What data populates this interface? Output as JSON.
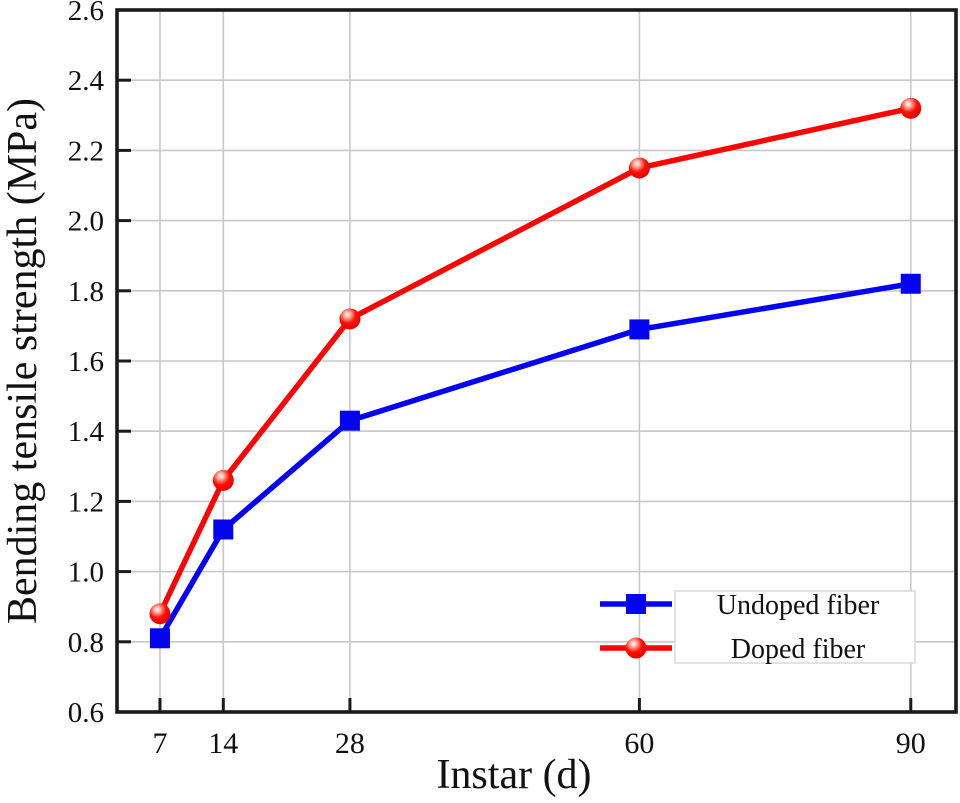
{
  "chart_data": {
    "type": "line",
    "title": "",
    "xlabel": "Instar (d)",
    "ylabel": "Bending tensile strength (MPa)",
    "x": [
      7,
      14,
      28,
      60,
      90
    ],
    "x_tick_labels": [
      "7",
      "14",
      "28",
      "60",
      "90"
    ],
    "y_ticks": [
      0.6,
      0.8,
      1.0,
      1.2,
      1.4,
      1.6,
      1.8,
      2.0,
      2.2,
      2.4,
      2.6
    ],
    "y_tick_labels": [
      "0.6",
      "0.8",
      "1.0",
      "1.2",
      "1.4",
      "1.6",
      "1.8",
      "2.0",
      "2.2",
      "2.4",
      "2.6"
    ],
    "xlim": [
      2.25,
      95
    ],
    "ylim": [
      0.6,
      2.6
    ],
    "grid": true,
    "legend_position": "lower-right",
    "series": [
      {
        "name": "Undoped fiber",
        "marker": "square",
        "color": "#0404f2",
        "values": [
          0.81,
          1.12,
          1.43,
          1.69,
          1.82
        ]
      },
      {
        "name": "Doped fiber",
        "marker": "sphere",
        "color": "#fa0404",
        "values": [
          0.88,
          1.26,
          1.72,
          2.15,
          2.32
        ]
      }
    ],
    "colors": {
      "grid": "#c8c8c8",
      "axis": "#1a1a1a",
      "legend_border": "#d8d8d8",
      "legend_background": "#ffffff",
      "undoped_series": "#0404f2",
      "doped_series": "#fa0404"
    }
  }
}
